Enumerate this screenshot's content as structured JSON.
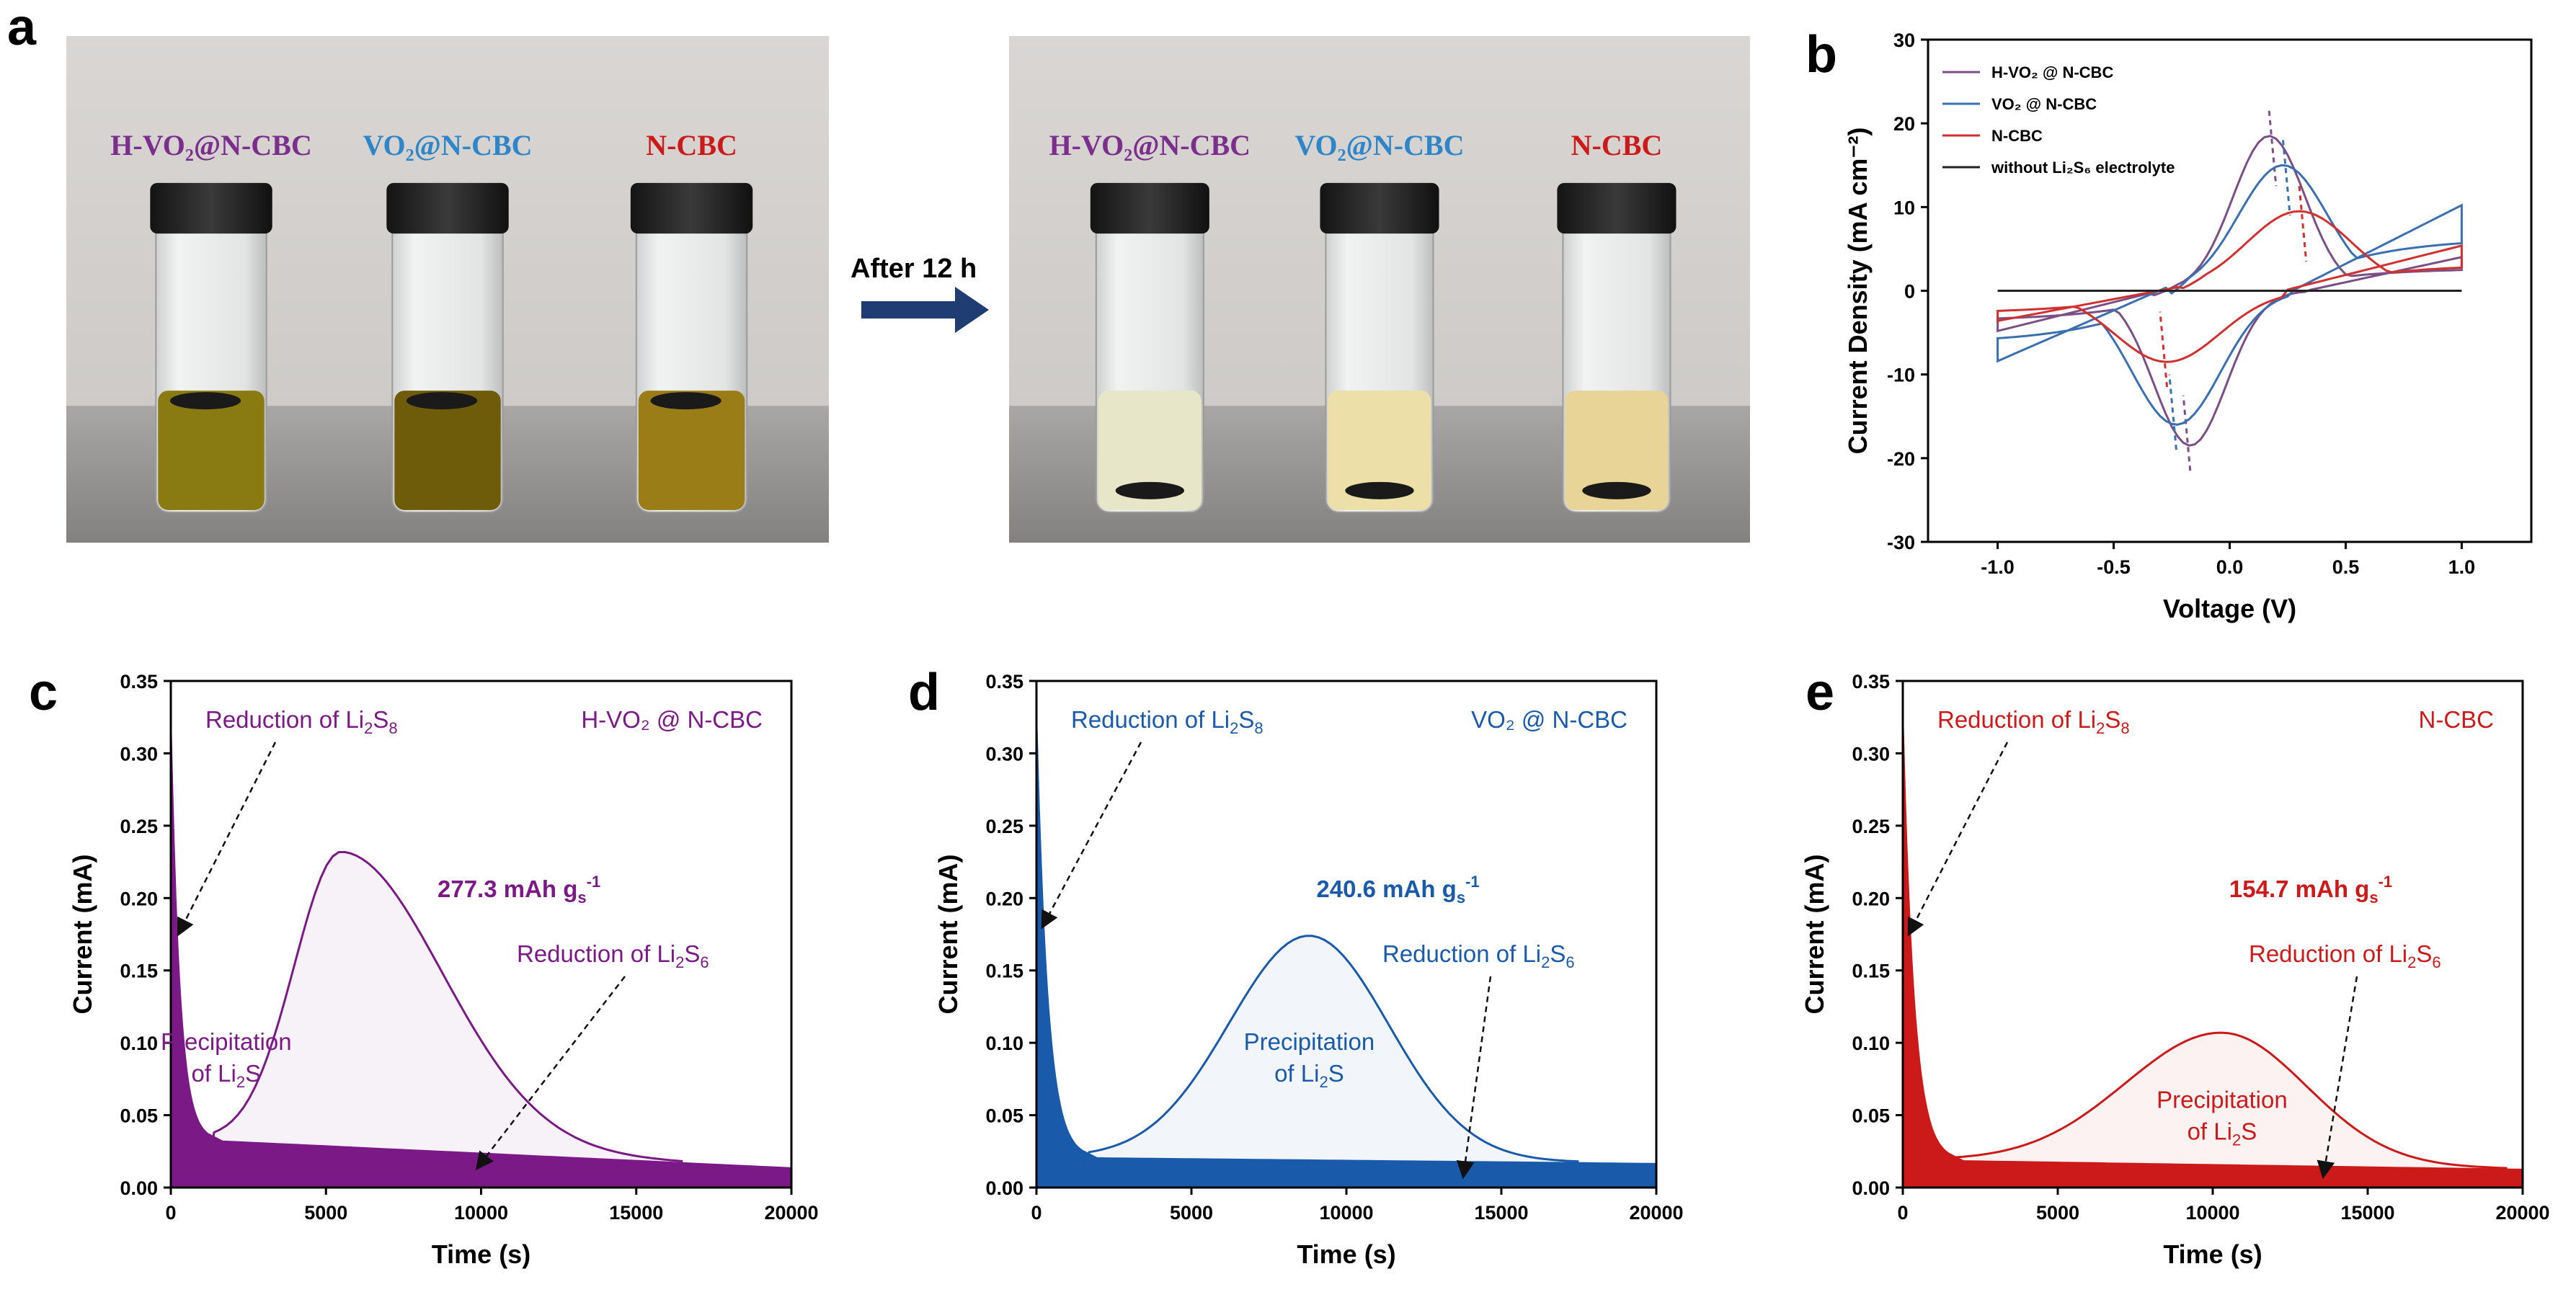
{
  "panels": {
    "a": "a",
    "b": "b",
    "c": "c",
    "d": "d",
    "e": "e"
  },
  "photos": {
    "arrow_text": "After 12 h",
    "before_labels": [
      {
        "text": "H-VO₂@N-CBC",
        "color": "#7b2e8c"
      },
      {
        "text": "VO₂@N-CBC",
        "color": "#2e86c8"
      },
      {
        "text": "N-CBC",
        "color": "#cc1a1a"
      }
    ],
    "after_labels": [
      {
        "text": "H-VO₂@N-CBC",
        "color": "#7b2e8c"
      },
      {
        "text": "VO₂@N-CBC",
        "color": "#2e86c8"
      },
      {
        "text": "N-CBC",
        "color": "#cc1a1a"
      }
    ]
  },
  "chart_data": [
    {
      "id": "b",
      "type": "line",
      "title": "",
      "xlabel": "Voltage (V)",
      "ylabel": "Current Density (mA cm⁻²)",
      "xlim": [
        -1.3,
        1.3
      ],
      "ylim": [
        -30,
        30
      ],
      "xticks": [
        "-1.0",
        "-0.5",
        "0.0",
        "0.5",
        "1.0"
      ],
      "xtick_values": [
        -1.0,
        -0.5,
        0.0,
        0.5,
        1.0
      ],
      "yticks": [
        "-30",
        "-20",
        "-10",
        "0",
        "10",
        "20",
        "30"
      ],
      "ytick_values": [
        -30,
        -20,
        -10,
        0,
        10,
        20,
        30
      ],
      "legend_position": "top-left",
      "series": [
        {
          "name": "H-VO₂ @ N-CBC",
          "color": "#7b4f86",
          "anodic_peak": [
            0.17,
            18.5
          ],
          "cathodic_peak": [
            -0.17,
            -18.5
          ],
          "ends": [
            [
              -1.0,
              -4.0
            ],
            [
              1.0,
              3.0
            ]
          ]
        },
        {
          "name": "VO₂ @ N-CBC",
          "color": "#3a6fb0",
          "anodic_peak": [
            0.23,
            15.0
          ],
          "cathodic_peak": [
            -0.23,
            -16.0
          ],
          "ends": [
            [
              -1.0,
              -7.0
            ],
            [
              1.0,
              7.0
            ]
          ]
        },
        {
          "name": "N-CBC",
          "color": "#d03030",
          "anodic_peak": [
            0.3,
            9.5
          ],
          "cathodic_peak": [
            -0.27,
            -8.5
          ],
          "ends": [
            [
              -1.0,
              -3.0
            ],
            [
              1.0,
              3.5
            ]
          ]
        },
        {
          "name": "without Li₂S₆ electrolyte",
          "color": "#222222",
          "x": [
            -1.0,
            1.0
          ],
          "y": [
            0,
            0
          ]
        }
      ]
    },
    {
      "id": "c",
      "type": "area",
      "xlabel": "Time (s)",
      "ylabel": "Current (mA)",
      "xlim": [
        0,
        20000
      ],
      "ylim": [
        0,
        0.35
      ],
      "xticks": [
        "0",
        "5000",
        "10000",
        "15000",
        "20000"
      ],
      "xtick_values": [
        0,
        5000,
        10000,
        15000,
        20000
      ],
      "yticks": [
        "0.00",
        "0.05",
        "0.10",
        "0.15",
        "0.20",
        "0.25",
        "0.30",
        "0.35"
      ],
      "ytick_values": [
        0,
        0.05,
        0.1,
        0.15,
        0.2,
        0.25,
        0.3,
        0.35
      ],
      "color": "#7b1a86",
      "sample_name": "H-VO₂ @ N-CBC",
      "capacity": "277.3 mAh g",
      "capacity_sub": "s",
      "capacity_sup": "-1",
      "annotation_top": "Reduction of Li",
      "annotation_mid": "Reduction of Li",
      "precip_line1": "Precipitation",
      "precip_line2": "of Li",
      "peak_time": 5500,
      "peak_current": 0.232,
      "valley_time": 1200,
      "valley_current": 0.033,
      "baseline_start": 0.033,
      "baseline_end": 0.014,
      "peak_end_time": 16500,
      "arrow_top_target": [
        200,
        0.175
      ],
      "arrow_mid_target": [
        10000,
        0.01
      ]
    },
    {
      "id": "d",
      "type": "area",
      "xlabel": "Time (s)",
      "ylabel": "Current (mA)",
      "xlim": [
        0,
        20000
      ],
      "ylim": [
        0,
        0.35
      ],
      "xticks": [
        "0",
        "5000",
        "10000",
        "15000",
        "20000"
      ],
      "xtick_values": [
        0,
        5000,
        10000,
        15000,
        20000
      ],
      "yticks": [
        "0.00",
        "0.05",
        "0.10",
        "0.15",
        "0.20",
        "0.25",
        "0.30",
        "0.35"
      ],
      "ytick_values": [
        0,
        0.05,
        0.1,
        0.15,
        0.2,
        0.25,
        0.3,
        0.35
      ],
      "color": "#1a5aaa",
      "sample_name": "VO₂ @ N-CBC",
      "capacity": "240.6 mAh g",
      "capacity_sub": "s",
      "capacity_sup": "-1",
      "annotation_top": "Reduction of Li",
      "annotation_mid": "Reduction of Li",
      "precip_line1": "Precipitation",
      "precip_line2": "of Li",
      "peak_time": 8800,
      "peak_current": 0.174,
      "valley_time": 1500,
      "valley_current": 0.021,
      "baseline_start": 0.021,
      "baseline_end": 0.017,
      "peak_end_time": 17500,
      "arrow_top_target": [
        150,
        0.18
      ],
      "arrow_mid_target": [
        13800,
        0.005
      ]
    },
    {
      "id": "e",
      "type": "area",
      "xlabel": "Time (s)",
      "ylabel": "Current (mA)",
      "xlim": [
        0,
        20000
      ],
      "ylim": [
        0,
        0.35
      ],
      "xticks": [
        "0",
        "5000",
        "10000",
        "15000",
        "20000"
      ],
      "xtick_values": [
        0,
        5000,
        10000,
        15000,
        20000
      ],
      "yticks": [
        "0.00",
        "0.05",
        "0.10",
        "0.15",
        "0.20",
        "0.25",
        "0.30",
        "0.35"
      ],
      "ytick_values": [
        0,
        0.05,
        0.1,
        0.15,
        0.2,
        0.25,
        0.3,
        0.35
      ],
      "color": "#cc1a1a",
      "sample_name": "N-CBC",
      "capacity": "154.7 mAh g",
      "capacity_sub": "s",
      "capacity_sup": "-1",
      "annotation_top": "Reduction of Li",
      "annotation_mid": "Reduction of Li",
      "precip_line1": "Precipitation",
      "precip_line2": "of Li",
      "peak_time": 10300,
      "peak_current": 0.107,
      "valley_time": 1500,
      "valley_current": 0.019,
      "baseline_start": 0.019,
      "baseline_end": 0.013,
      "peak_end_time": 19500,
      "arrow_top_target": [
        150,
        0.175
      ],
      "arrow_mid_target": [
        13600,
        0.005
      ]
    }
  ]
}
